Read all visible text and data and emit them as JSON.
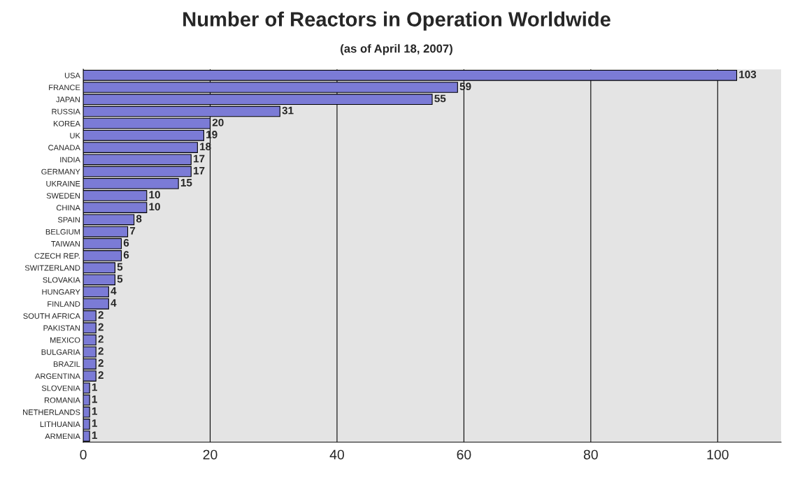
{
  "chart_data": {
    "type": "bar",
    "orientation": "horizontal",
    "title": "Number of Reactors in Operation Worldwide",
    "subtitle": "(as of April 18, 2007)",
    "categories": [
      "USA",
      "FRANCE",
      "JAPAN",
      "RUSSIA",
      "KOREA",
      "UK",
      "CANADA",
      "INDIA",
      "GERMANY",
      "UKRAINE",
      "SWEDEN",
      "CHINA",
      "SPAIN",
      "BELGIUM",
      "TAIWAN",
      "CZECH REP.",
      "SWITZERLAND",
      "SLOVAKIA",
      "HUNGARY",
      "FINLAND",
      "SOUTH AFRICA",
      "PAKISTAN",
      "MEXICO",
      "BULGARIA",
      "BRAZIL",
      "ARGENTINA",
      "SLOVENIA",
      "ROMANIA",
      "NETHERLANDS",
      "LITHUANIA",
      "ARMENIA"
    ],
    "values": [
      103,
      59,
      55,
      31,
      20,
      19,
      18,
      17,
      17,
      15,
      10,
      10,
      8,
      7,
      6,
      6,
      5,
      5,
      4,
      4,
      2,
      2,
      2,
      2,
      2,
      2,
      1,
      1,
      1,
      1,
      1
    ],
    "color": "#7b7bd6",
    "xlim": [
      0,
      110
    ],
    "xticks": [
      0,
      20,
      40,
      60,
      80,
      100
    ],
    "grid": "x",
    "data_labels": true,
    "legend": false
  }
}
